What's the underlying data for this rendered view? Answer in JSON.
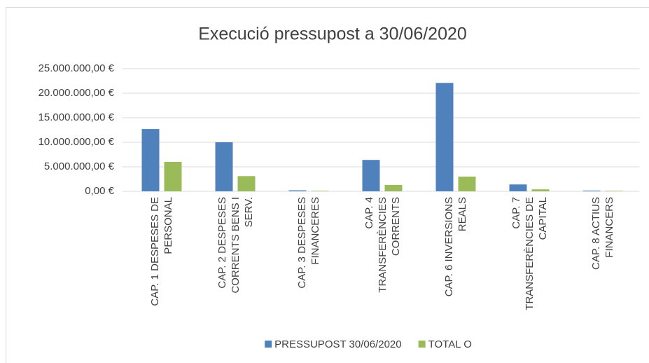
{
  "chart_data": {
    "type": "bar",
    "title": "Execució pressupost a 30/06/2020",
    "categories": [
      "CAP. 1 DESPESES DE PERSONAL",
      "CAP. 2 DESPESES CORRENTS BENS I SERV.",
      "CAP. 3 DESPESES FINANCERES",
      "CAP. 4 TRANSFERÈNCIES CORRENTS",
      "CAP. 6 INVERSIONS REALS",
      "CAP. 7 TRANSFERÈNCIES DE CAPITAL",
      "CAP. 8 ACTIUS FINANCERS"
    ],
    "series": [
      {
        "name": "PRESSUPOST 30/06/2020",
        "color": "#4f81bd",
        "values": [
          12700000,
          10000000,
          200000,
          6400000,
          22100000,
          1400000,
          150000
        ]
      },
      {
        "name": "TOTAL O",
        "color": "#9bbb59",
        "values": [
          6000000,
          3100000,
          100000,
          1300000,
          3000000,
          400000,
          100000
        ]
      }
    ],
    "ylim": [
      0,
      25000000
    ],
    "yticks": [
      {
        "value": 0,
        "label": "0,00 €"
      },
      {
        "value": 5000000,
        "label": "5.000.000,00 €"
      },
      {
        "value": 10000000,
        "label": "10.000.000,00 €"
      },
      {
        "value": 15000000,
        "label": "15.000.000,00 €"
      },
      {
        "value": 20000000,
        "label": "20.000.000,00 €"
      },
      {
        "value": 25000000,
        "label": "25.000.000,00 €"
      }
    ],
    "grid": true,
    "legend": "bottom"
  }
}
